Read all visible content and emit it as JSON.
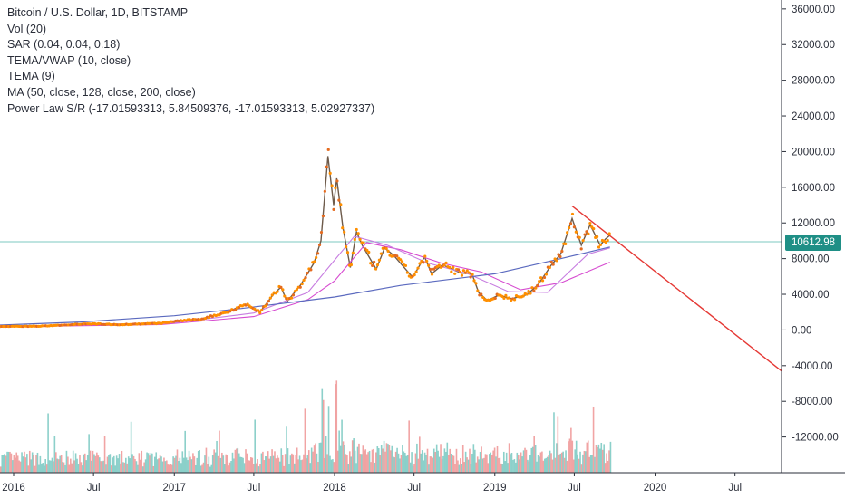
{
  "legend": {
    "title": "Bitcoin / U.S. Dollar, 1D, BITSTAMP",
    "indicators": [
      "Vol (20)",
      "SAR (0.04, 0.04, 0.18)",
      "TEMA/VWAP (10, close)",
      "TEMA (9)",
      "MA (50, close, 128, close, 200, close)",
      "Power Law S/R (-17.01593313, 5.84509376, -17.01593313, 5.02927337)"
    ]
  },
  "current_price": "10612.98",
  "colors": {
    "price_line": "#26a69a",
    "price_badge": "#1f8f86",
    "trendline": "#e53935",
    "power_law": "#5b6abf",
    "ma50": "#ef6cc3",
    "ma128": "#c77de0",
    "ma200": "#d64ad0",
    "tema": "#ff8f00",
    "sar": "#e56b1f",
    "vol_up": "#80cbc4",
    "vol_down": "#ef9a9a"
  },
  "chart_data": {
    "type": "line",
    "ylim": [
      -16000,
      37000
    ],
    "y_ticks": [
      36000,
      32000,
      28000,
      24000,
      20000,
      16000,
      12000,
      8000,
      4000,
      0,
      -4000,
      -8000,
      -12000
    ],
    "y_tick_labels": [
      "36000.00",
      "32000.00",
      "28000.00",
      "24000.00",
      "20000.00",
      "16000.00",
      "12000.00",
      "8000.00",
      "4000.00",
      "0.00",
      "-4000.00",
      "-8000.00",
      "-12000.00"
    ],
    "x_range": [
      "2015-12-01",
      "2020-10-15"
    ],
    "x_ticks": [
      "2016-01-01",
      "2016-07-01",
      "2017-01-01",
      "2017-07-01",
      "2018-01-01",
      "2018-07-01",
      "2019-01-01",
      "2019-07-01",
      "2020-01-01",
      "2020-07-01"
    ],
    "x_tick_labels": [
      "2016",
      "Jul",
      "2017",
      "Jul",
      "2018",
      "Jul",
      "2019",
      "Jul",
      "2020",
      "Jul"
    ],
    "series": [
      {
        "name": "BTCUSD",
        "x": [
          "2015-12-01",
          "2016-03-01",
          "2016-06-15",
          "2016-09-01",
          "2016-12-01",
          "2017-01-05",
          "2017-03-01",
          "2017-05-01",
          "2017-06-12",
          "2017-07-15",
          "2017-08-15",
          "2017-09-01",
          "2017-09-15",
          "2017-10-15",
          "2017-11-15",
          "2017-12-01",
          "2017-12-17",
          "2017-12-30",
          "2018-01-06",
          "2018-01-20",
          "2018-02-06",
          "2018-02-20",
          "2018-03-05",
          "2018-04-06",
          "2018-04-25",
          "2018-05-15",
          "2018-06-28",
          "2018-07-25",
          "2018-08-10",
          "2018-09-04",
          "2018-10-15",
          "2018-11-10",
          "2018-11-25",
          "2018-12-15",
          "2019-01-10",
          "2019-02-08",
          "2019-03-15",
          "2019-04-10",
          "2019-05-10",
          "2019-05-31",
          "2019-06-26",
          "2019-07-17",
          "2019-08-06",
          "2019-08-29",
          "2019-09-10",
          "2019-09-20"
        ],
        "y": [
          400,
          420,
          700,
          600,
          750,
          1000,
          1200,
          2000,
          2900,
          2000,
          4000,
          4800,
          3200,
          5000,
          7500,
          10000,
          19500,
          14000,
          17000,
          11500,
          7000,
          11000,
          9500,
          6800,
          9200,
          8400,
          5900,
          8200,
          6300,
          7300,
          6400,
          6300,
          4200,
          3300,
          3900,
          3500,
          3950,
          5100,
          7300,
          8500,
          12500,
          9500,
          11800,
          9500,
          10200,
          10613
        ]
      },
      {
        "name": "MA (200)",
        "x": [
          "2015-12-01",
          "2016-12-01",
          "2017-07-01",
          "2017-11-01",
          "2018-01-01",
          "2018-03-15",
          "2018-06-01",
          "2018-09-01",
          "2018-12-01",
          "2019-03-01",
          "2019-06-01",
          "2019-09-20"
        ],
        "y": [
          350,
          600,
          1500,
          3400,
          5500,
          9800,
          9000,
          7500,
          6500,
          4500,
          5300,
          7600
        ]
      },
      {
        "name": "MA (128)",
        "x": [
          "2015-12-01",
          "2017-01-01",
          "2017-07-01",
          "2017-11-01",
          "2018-02-15",
          "2018-05-01",
          "2018-08-01",
          "2018-11-01",
          "2019-02-01",
          "2019-05-01",
          "2019-08-01",
          "2019-09-20"
        ],
        "y": [
          380,
          800,
          1900,
          4200,
          10500,
          9500,
          7500,
          6300,
          4300,
          4200,
          8500,
          9200
        ]
      },
      {
        "name": "Power Law S/R",
        "x": [
          "2015-12-01",
          "2016-06-01",
          "2017-01-01",
          "2017-06-01",
          "2018-01-01",
          "2018-06-01",
          "2019-01-01",
          "2019-06-01",
          "2019-09-20"
        ],
        "y": [
          550,
          900,
          1600,
          2400,
          3700,
          5000,
          6300,
          8000,
          9300
        ]
      },
      {
        "name": "Trendline",
        "x": [
          "2019-06-26",
          "2020-10-15"
        ],
        "y": [
          13900,
          -4600
        ]
      }
    ]
  }
}
